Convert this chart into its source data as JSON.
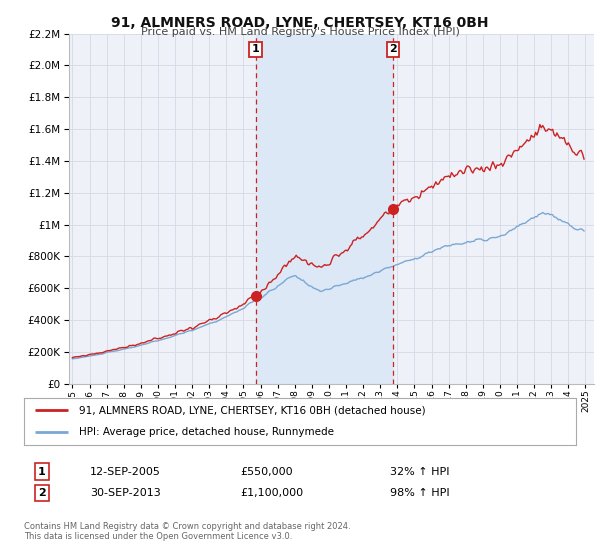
{
  "title": "91, ALMNERS ROAD, LYNE, CHERTSEY, KT16 0BH",
  "subtitle": "Price paid vs. HM Land Registry's House Price Index (HPI)",
  "legend_line1": "91, ALMNERS ROAD, LYNE, CHERTSEY, KT16 0BH (detached house)",
  "legend_line2": "HPI: Average price, detached house, Runnymede",
  "hpi_color": "#7ba7d4",
  "price_color": "#cc2222",
  "sale1_date": 2005.708,
  "sale1_price": 550000,
  "sale1_label": "1",
  "sale1_text": "12-SEP-2005",
  "sale1_pct": "32%",
  "sale2_date": 2013.75,
  "sale2_price": 1100000,
  "sale2_label": "2",
  "sale2_text": "30-SEP-2013",
  "sale2_pct": "98%",
  "ylim": [
    0,
    2200000
  ],
  "xlim_start": 1994.8,
  "xlim_end": 2025.5,
  "background_color": "#ffffff",
  "plot_bg_color": "#eef2f8",
  "grid_color": "#d8dce8",
  "span_color": "#dce8f5",
  "footnote": "Contains HM Land Registry data © Crown copyright and database right 2024.\nThis data is licensed under the Open Government Licence v3.0."
}
